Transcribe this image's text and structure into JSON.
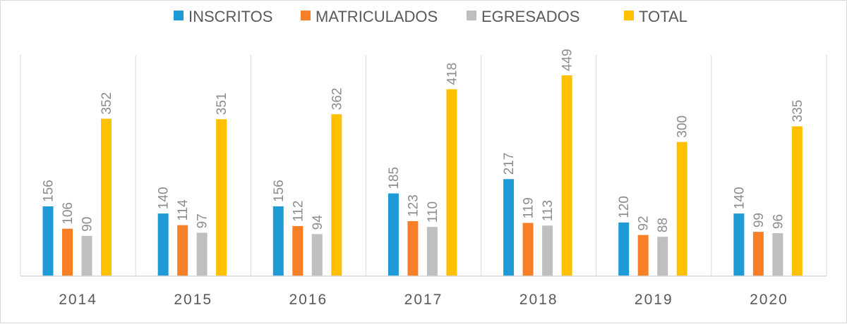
{
  "chart_data": {
    "type": "bar",
    "title": "",
    "xlabel": "",
    "ylabel": "",
    "categories": [
      "2014",
      "2015",
      "2016",
      "2017",
      "2018",
      "2019",
      "2020"
    ],
    "series": [
      {
        "name": "INSCRITOS",
        "color": "#1e9bd7",
        "values": [
          156,
          140,
          156,
          185,
          217,
          120,
          140
        ]
      },
      {
        "name": "MATRICULADOS",
        "color": "#f77f27",
        "values": [
          106,
          114,
          112,
          123,
          119,
          92,
          99
        ]
      },
      {
        "name": "EGRESADOS",
        "color": "#bfbfbf",
        "values": [
          90,
          97,
          94,
          110,
          113,
          88,
          96
        ]
      },
      {
        "name": "TOTAL",
        "color": "#ffc000",
        "values": [
          352,
          351,
          362,
          418,
          449,
          300,
          335
        ]
      }
    ],
    "ylim": [
      0,
      449
    ],
    "legend": "top-center",
    "grid": false,
    "category_separators": true,
    "data_labels": true,
    "data_label_rotation": "vertical"
  }
}
